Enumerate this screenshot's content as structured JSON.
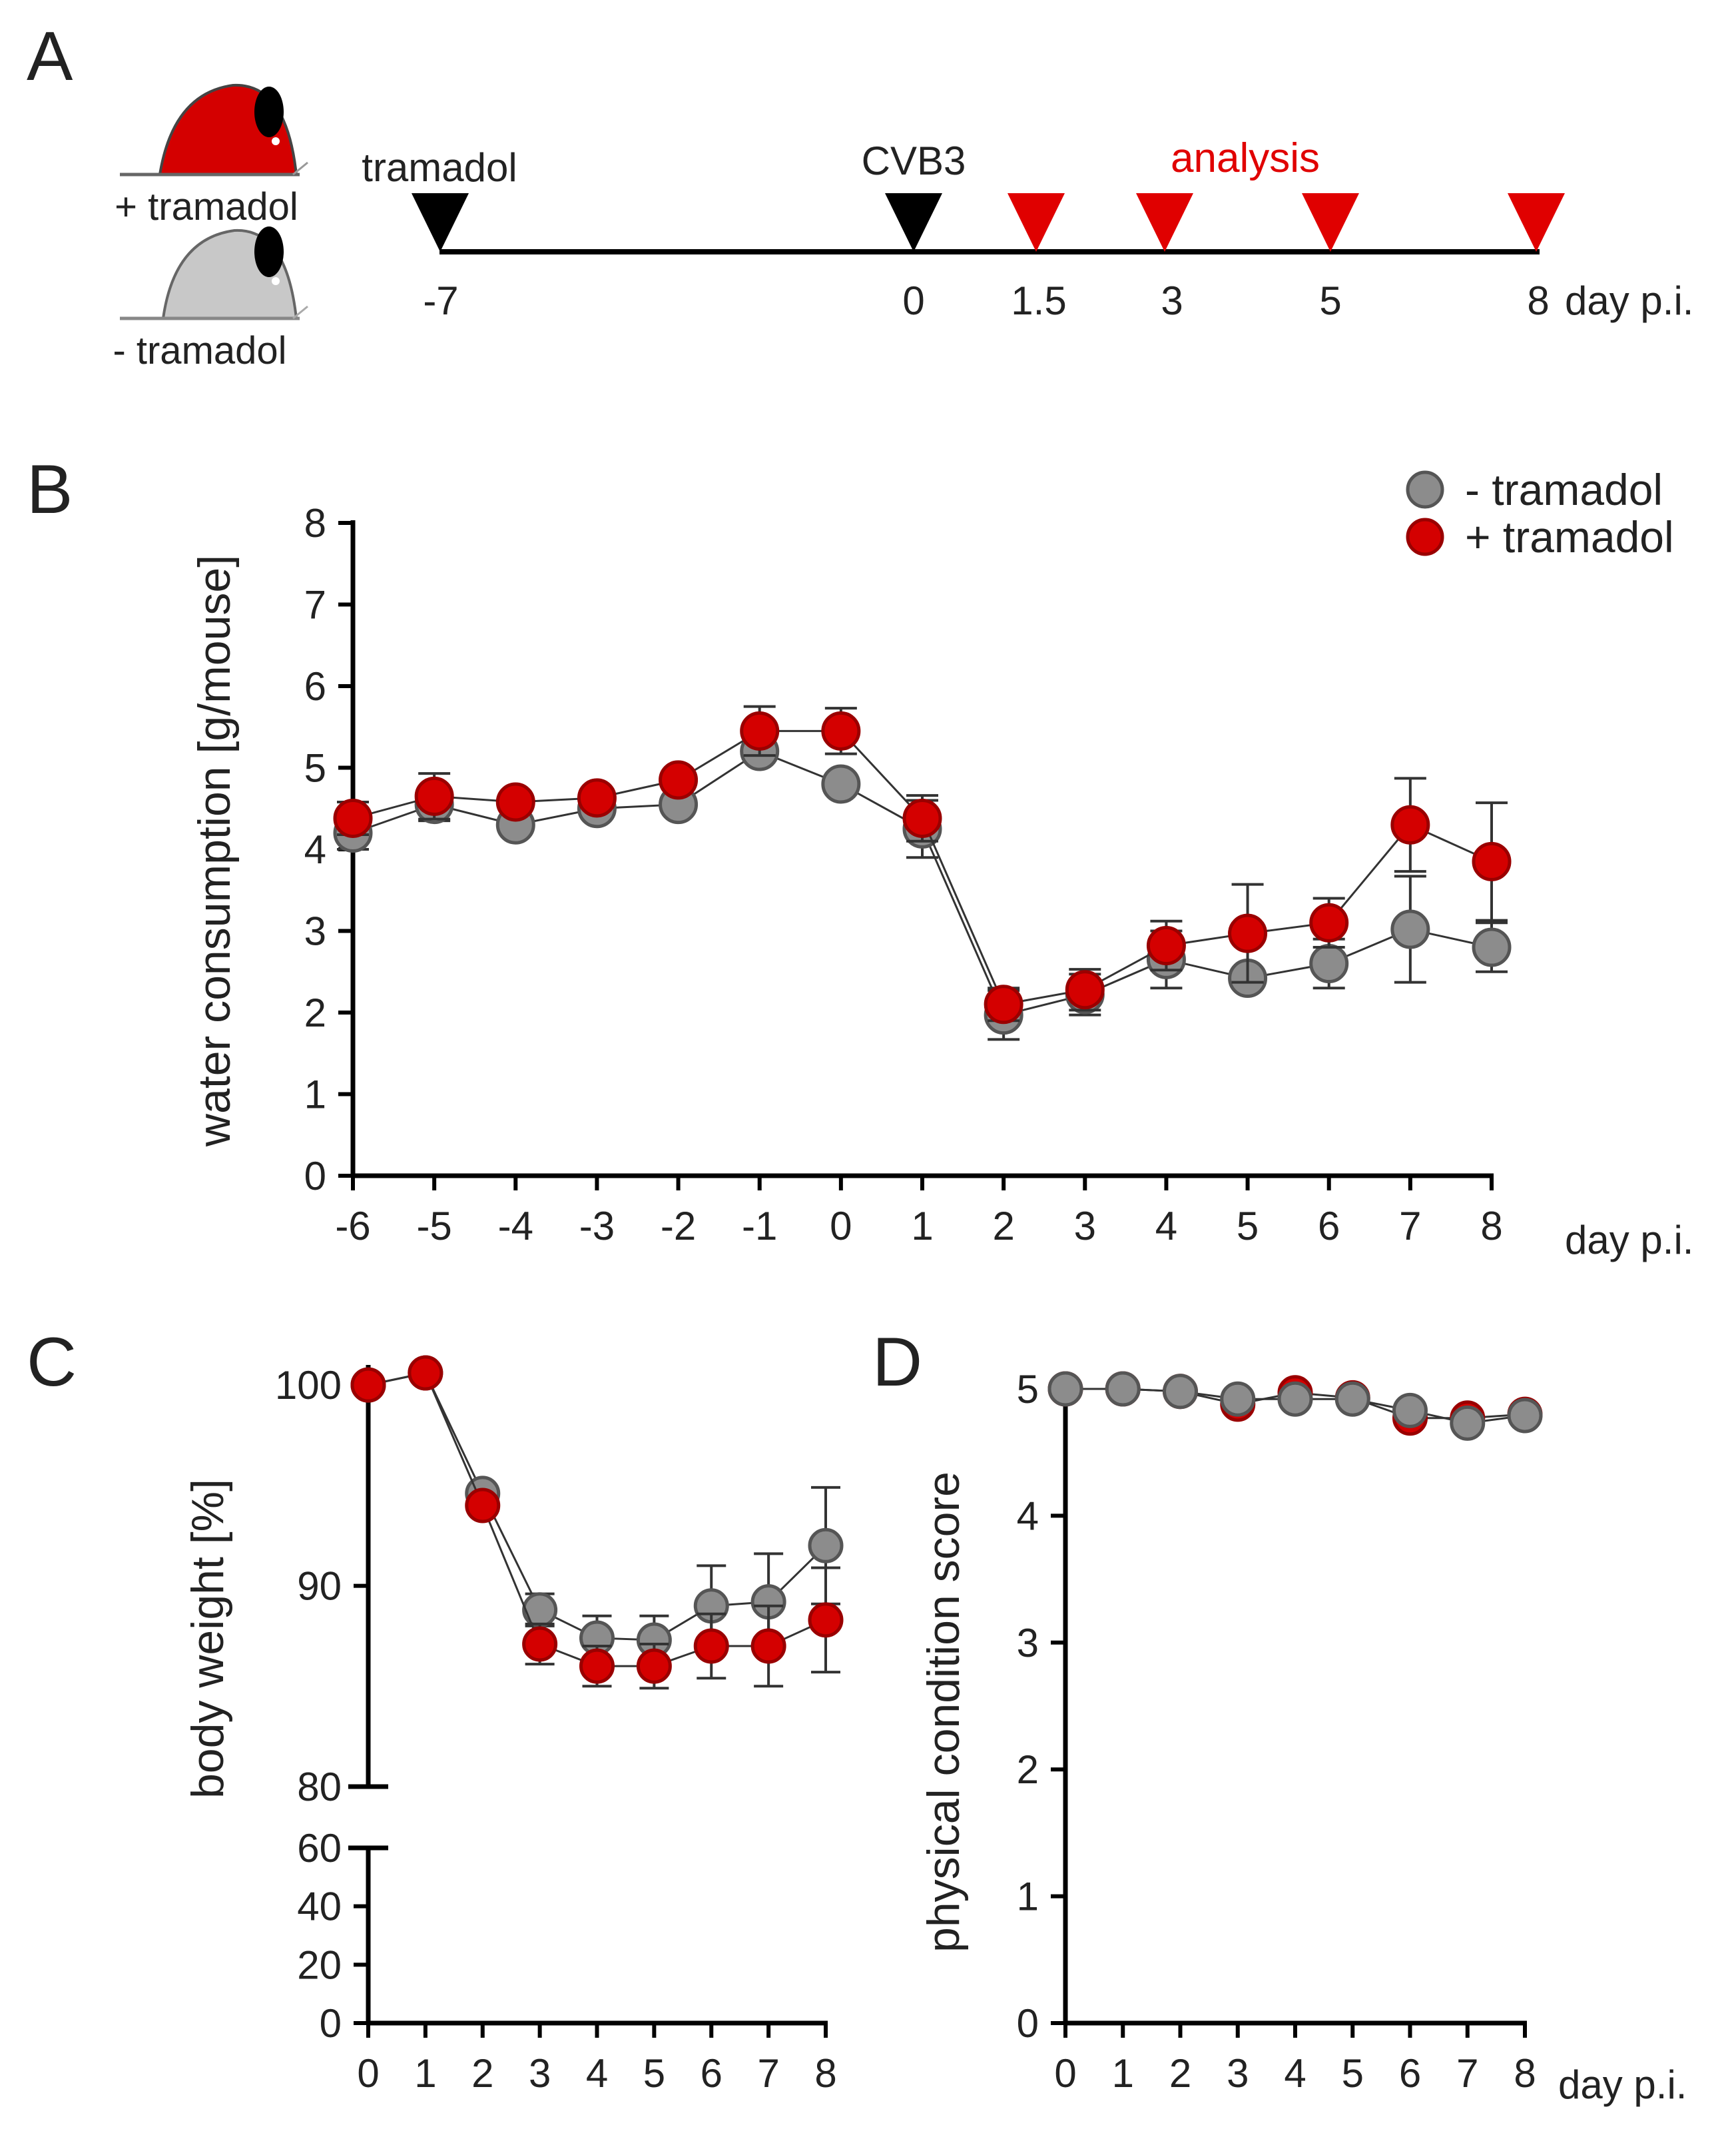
{
  "panel_labels": {
    "a": "A",
    "b": "B",
    "c": "C",
    "d": "D"
  },
  "colors": {
    "red": "#d40000",
    "red_dark": "#9a0000",
    "grey": "#8c8c8c",
    "grey_dark": "#555555",
    "mouse_grey": "#c8c8c8",
    "axis": "#000000"
  },
  "timeline": {
    "groups": [
      "+ tramadol",
      "- tramadol"
    ],
    "tramadol_label": "tramadol",
    "cvb3_label": "CVB3",
    "analysis_label": "analysis",
    "unit_label": "day p.i.",
    "treatment_markers": [
      {
        "label": "-7",
        "event": "tramadol"
      },
      {
        "label": "0",
        "event": "CVB3"
      }
    ],
    "analysis_markers": [
      "1.5",
      "3",
      "5",
      "8"
    ]
  },
  "chart_data": [
    {
      "panel": "B",
      "type": "line",
      "title": "",
      "ylabel": "water consumption [g/mouse]",
      "xlabel": "day p.i.",
      "x": [
        -6,
        -5,
        -4,
        -3,
        -2,
        -1,
        0,
        1,
        2,
        3,
        4,
        5,
        6,
        7,
        8
      ],
      "xticks": [
        "-6",
        "-5",
        "-4",
        "-3",
        "-2",
        "-1",
        "0",
        "1",
        "2",
        "3",
        "4",
        "5",
        "6",
        "7",
        "8"
      ],
      "ylim": [
        0,
        8
      ],
      "yticks": [
        "0",
        "1",
        "2",
        "3",
        "4",
        "5",
        "6",
        "7",
        "8"
      ],
      "legend": "top-right",
      "series": [
        {
          "name": "- tramadol",
          "color": "#8c8c8c",
          "values": [
            4.2,
            4.55,
            4.3,
            4.5,
            4.55,
            5.2,
            4.8,
            4.25,
            1.97,
            2.22,
            2.65,
            2.42,
            2.6,
            3.02,
            2.8
          ],
          "err": [
            0.2,
            0.2,
            0.0,
            0.0,
            0.0,
            0.0,
            0.0,
            0.35,
            0.3,
            0.25,
            0.35,
            0.0,
            0.3,
            0.65,
            0.3
          ]
        },
        {
          "name": "+ tramadol",
          "color": "#d40000",
          "values": [
            4.38,
            4.65,
            4.58,
            4.63,
            4.85,
            5.45,
            5.45,
            4.38,
            2.1,
            2.28,
            2.82,
            2.97,
            3.1,
            4.3,
            3.85
          ],
          "err": [
            0.2,
            0.28,
            0.0,
            0.0,
            0.0,
            0.3,
            0.28,
            0.28,
            0.2,
            0.25,
            0.3,
            0.6,
            0.3,
            0.57,
            0.72
          ]
        }
      ]
    },
    {
      "panel": "C",
      "type": "line",
      "title": "",
      "ylabel": "body weight [%]",
      "xlabel": "",
      "x": [
        0,
        1,
        2,
        3,
        4,
        5,
        6,
        7,
        8
      ],
      "xticks": [
        "0",
        "1",
        "2",
        "3",
        "4",
        "5",
        "6",
        "7",
        "8"
      ],
      "y_break": true,
      "ylim_lower": [
        0,
        60
      ],
      "yticks_lower": [
        "0",
        "20",
        "40",
        "60"
      ],
      "ylim_upper": [
        80,
        101
      ],
      "yticks_upper": [
        "80",
        "90",
        "100"
      ],
      "series": [
        {
          "name": "- tramadol",
          "color": "#8c8c8c",
          "values": [
            100,
            100.6,
            94.6,
            88.8,
            87.4,
            87.3,
            89.0,
            89.2,
            92.0
          ],
          "err": [
            0,
            0,
            0,
            0.8,
            1.1,
            1.2,
            2.0,
            2.4,
            2.9
          ]
        },
        {
          "name": "+ tramadol",
          "color": "#d40000",
          "values": [
            100,
            100.6,
            94.0,
            87.1,
            86.0,
            86.0,
            87.0,
            87.0,
            88.3
          ],
          "err": [
            0,
            0,
            0,
            1.0,
            1.0,
            1.1,
            1.6,
            2.0,
            2.6
          ]
        }
      ]
    },
    {
      "panel": "D",
      "type": "line",
      "title": "",
      "ylabel": "physical condition score",
      "xlabel": "day p.i.",
      "x": [
        0,
        1,
        2,
        3,
        4,
        5,
        6,
        7,
        8
      ],
      "xticks": [
        "0",
        "1",
        "2",
        "3",
        "4",
        "5",
        "6",
        "7",
        "8"
      ],
      "ylim": [
        0,
        5
      ],
      "yticks": [
        "0",
        "1",
        "2",
        "3",
        "4",
        "5"
      ],
      "series": [
        {
          "name": "+ tramadol",
          "color": "#d40000",
          "values": [
            5.0,
            5.0,
            4.98,
            4.88,
            4.97,
            4.93,
            4.77,
            4.77,
            4.8
          ],
          "err": [
            0,
            0,
            0,
            0,
            0,
            0,
            0,
            0,
            0
          ]
        },
        {
          "name": "- tramadol",
          "color": "#8c8c8c",
          "values": [
            5.0,
            5.0,
            4.98,
            4.92,
            4.92,
            4.92,
            4.83,
            4.73,
            4.79
          ],
          "err": [
            0,
            0,
            0,
            0,
            0,
            0,
            0,
            0,
            0
          ]
        }
      ]
    }
  ]
}
